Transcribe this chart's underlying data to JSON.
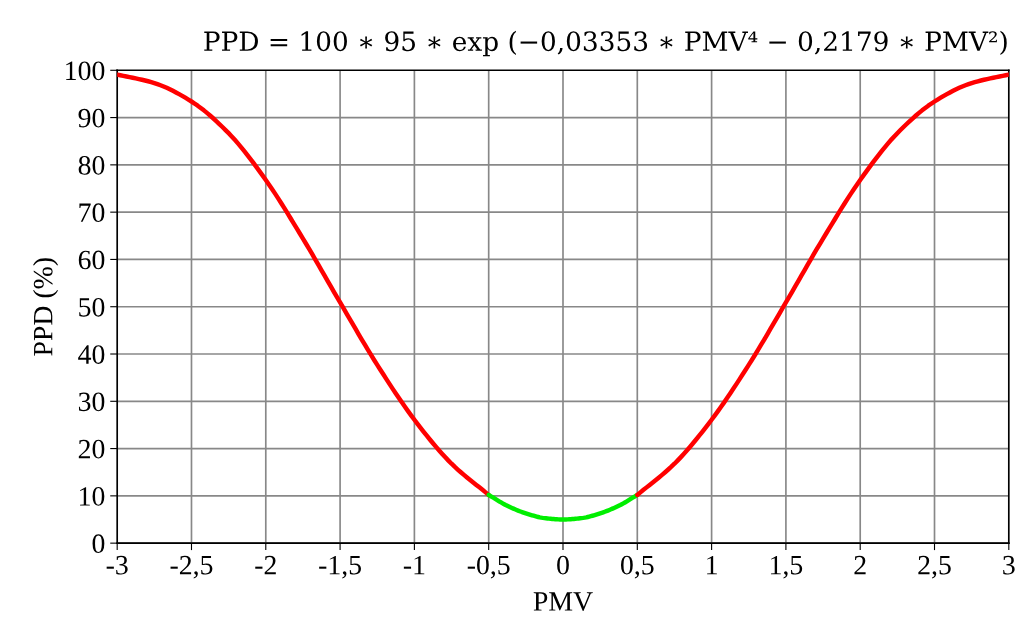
{
  "chart_data": {
    "type": "line",
    "title": "PPD = 100 ∗ 95 ∗ exp (−0,03353 ∗ PMV⁴ − 0,2179 ∗ PMV²)",
    "xlabel": "PMV",
    "ylabel": "PPD (%)",
    "series": [
      {
        "color": "#ff0000",
        "x": [
          -3,
          -2.75,
          -2.5,
          -2.25,
          -2,
          -1.75,
          -1.5,
          -1.25,
          -1,
          -0.75,
          -0.5
        ],
        "values": [
          99.1,
          97.3,
          93.4,
          86.7,
          76.8,
          64.4,
          50.9,
          37.7,
          26.1,
          16.8,
          10.2
        ]
      },
      {
        "color": "#00ee00",
        "x": [
          -0.5,
          -0.375,
          -0.25,
          -0.125,
          0,
          0.125,
          0.25,
          0.375,
          0.5
        ],
        "values": [
          10.2,
          7.9,
          6.3,
          5.3,
          5,
          5.3,
          6.3,
          7.9,
          10.2
        ]
      },
      {
        "color": "#ff0000",
        "x": [
          0.5,
          0.75,
          1,
          1.25,
          1.5,
          1.75,
          2,
          2.25,
          2.5,
          2.75,
          3
        ],
        "values": [
          10.2,
          16.8,
          26.1,
          37.7,
          50.9,
          64.4,
          76.8,
          86.7,
          93.4,
          97.3,
          99.1
        ]
      }
    ],
    "xlim": [
      -3,
      3
    ],
    "ylim": [
      0,
      100
    ],
    "xticks": [
      -3,
      {
        "value": -2.5,
        "label": "-2,5"
      },
      -2,
      {
        "value": -1.5,
        "label": "-1,5"
      },
      -1,
      {
        "value": -0.5,
        "label": "-0,5"
      },
      0,
      {
        "value": 0.5,
        "label": "0,5"
      },
      1,
      {
        "value": 1.5,
        "label": "1,5"
      },
      2,
      {
        "value": 2.5,
        "label": "2,5"
      },
      3
    ],
    "yticks": [
      0,
      10,
      20,
      30,
      40,
      50,
      60,
      70,
      80,
      90,
      100
    ],
    "grid": true,
    "legend": false,
    "marker": "none",
    "line_style": "solid"
  }
}
